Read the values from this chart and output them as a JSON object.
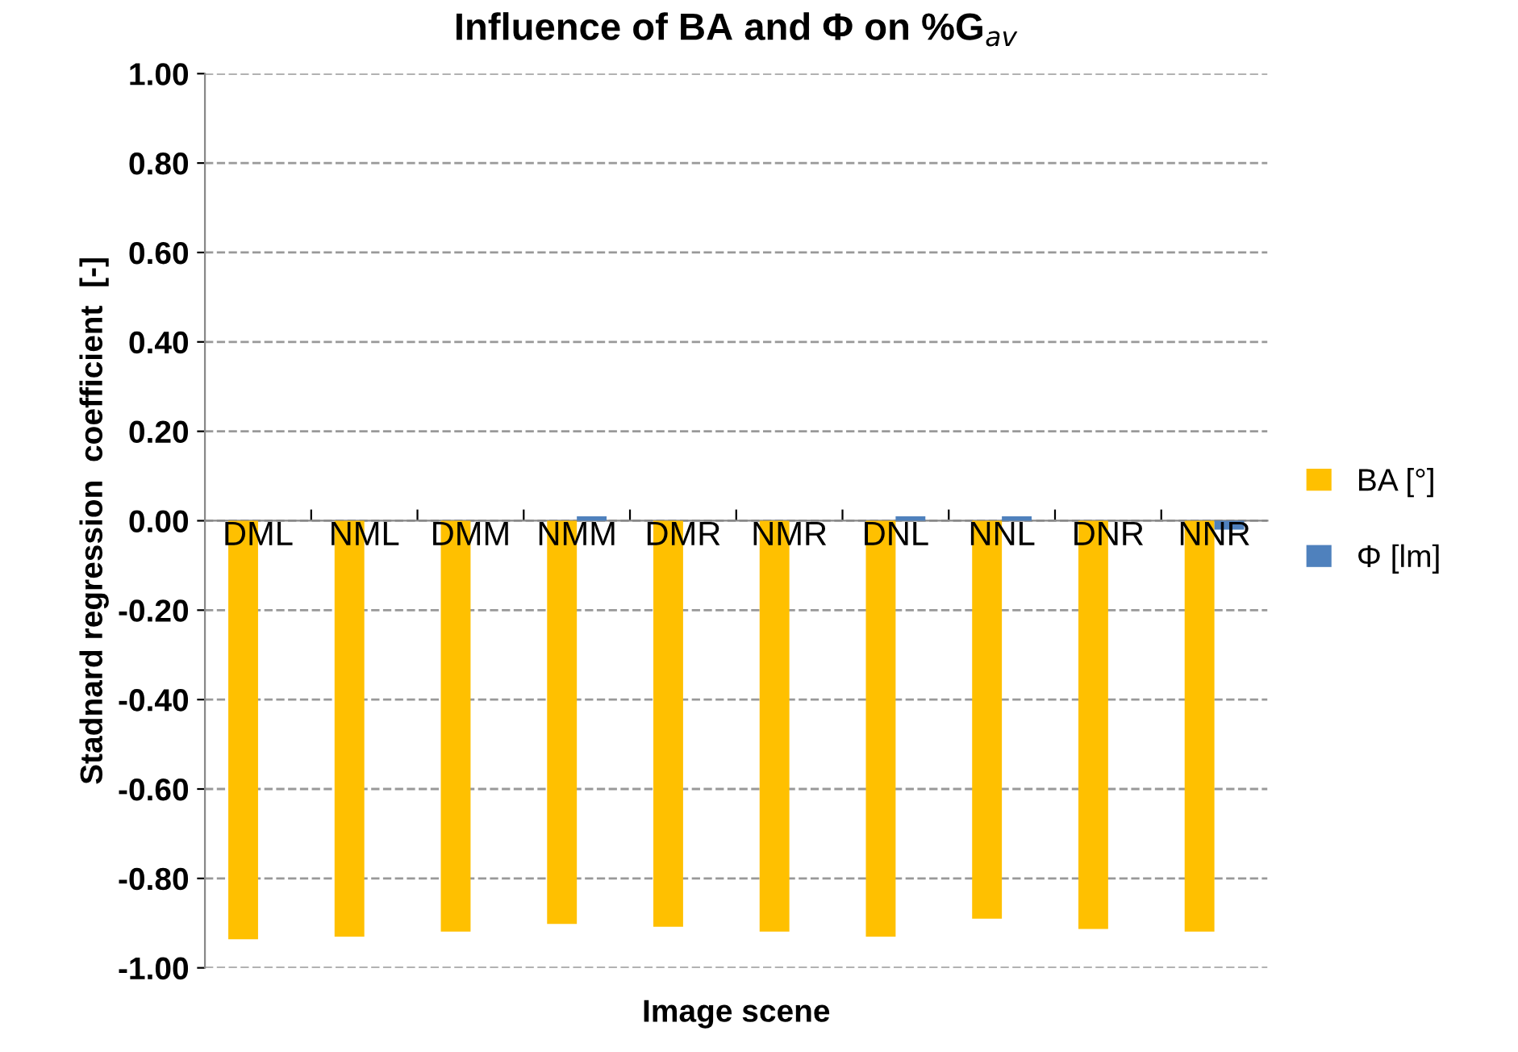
{
  "chart_data": {
    "type": "bar",
    "title": "Influence of BA and Φ on %G$_{av}$",
    "xlabel": "Image scene",
    "ylabel": "Stadnard regression  coefficient  [-]",
    "categories": [
      "DML",
      "NML",
      "DMM",
      "NMM",
      "DMR",
      "NMR",
      "DNL",
      "NNL",
      "DNR",
      "NNR"
    ],
    "series": [
      {
        "name": "BA [°]",
        "color": "#ffc000",
        "values": [
          -0.936,
          -0.93,
          -0.919,
          -0.902,
          -0.908,
          -0.919,
          -0.93,
          -0.89,
          -0.913,
          -0.919
        ]
      },
      {
        "name": "Φ [lm]",
        "color": "#4f81bd",
        "values": [
          0,
          0,
          0,
          0.01,
          0,
          0,
          0.01,
          0.01,
          0,
          -0.02
        ]
      }
    ],
    "ylim": [
      -1.0,
      1.0
    ],
    "yticks": [
      {
        "value": -1.0,
        "label": "-1.00"
      },
      {
        "value": -0.8,
        "label": "-0.80"
      },
      {
        "value": -0.6,
        "label": "-0.60"
      },
      {
        "value": -0.4,
        "label": "-0.40"
      },
      {
        "value": -0.2,
        "label": "-0.20"
      },
      {
        "value": 0.0,
        "label": "0.00"
      },
      {
        "value": 0.2,
        "label": "0.20"
      },
      {
        "value": 0.4,
        "label": "0.40"
      },
      {
        "value": 0.6,
        "label": "0.60"
      },
      {
        "value": 0.8,
        "label": "0.80"
      },
      {
        "value": 1.0,
        "label": "1.00"
      }
    ],
    "grid": "y",
    "legend": "right"
  }
}
